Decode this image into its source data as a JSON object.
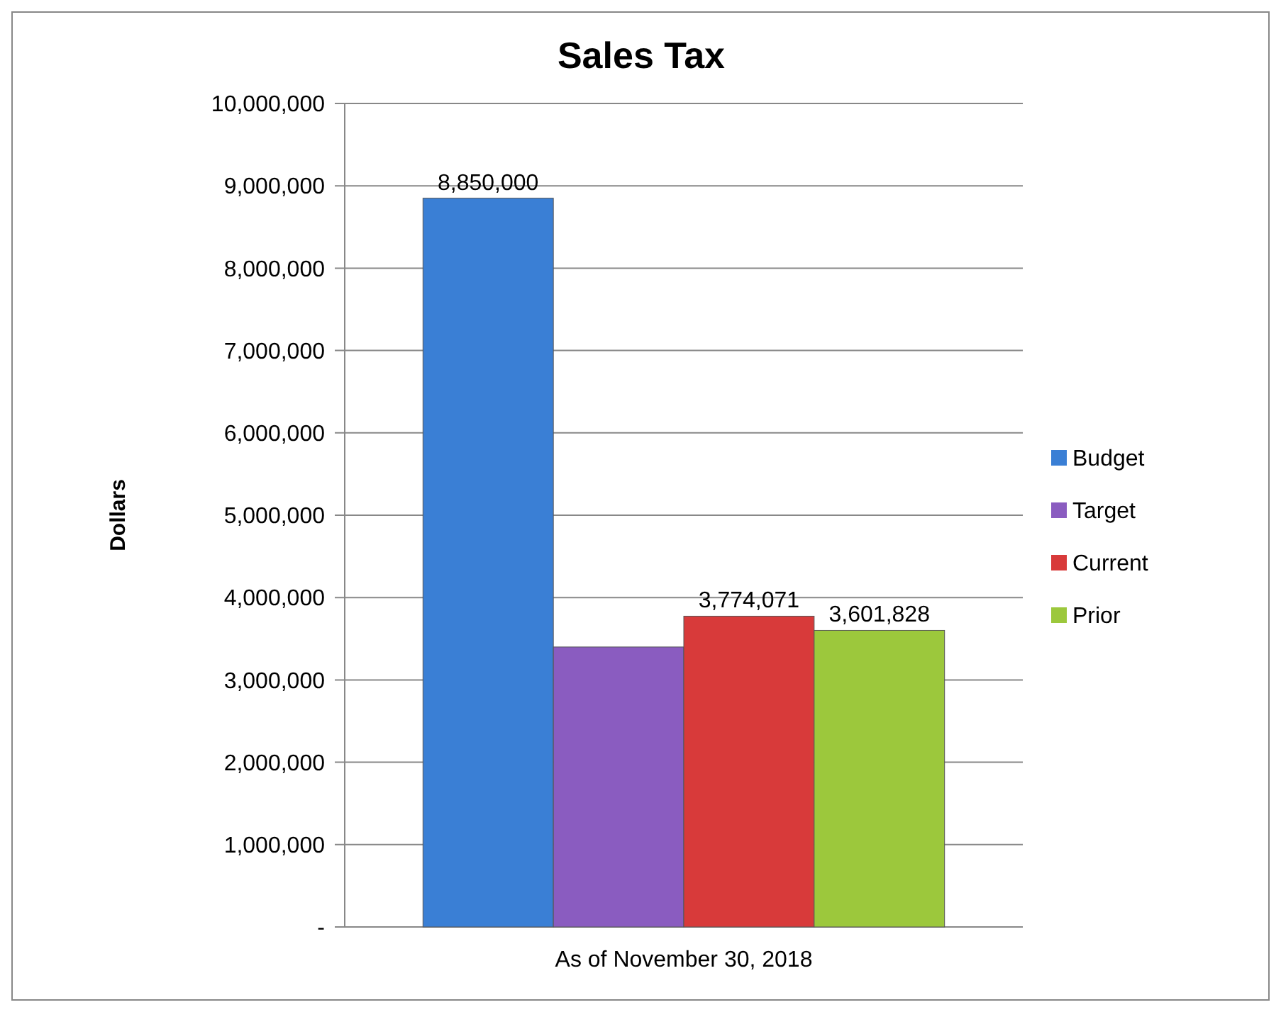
{
  "chart_data": {
    "type": "bar",
    "title": "Sales Tax",
    "ylabel": "Dollars",
    "categories": [
      "As of November 30, 2018"
    ],
    "series": [
      {
        "name": "Budget",
        "color": "#3a7fd5",
        "values": [
          8850000
        ],
        "value_labels": [
          "8,850,000"
        ]
      },
      {
        "name": "Target",
        "color": "#8a5cc0",
        "values": [
          3400000
        ],
        "value_labels": [
          null
        ]
      },
      {
        "name": "Current",
        "color": "#d83a3a",
        "values": [
          3774071
        ],
        "value_labels": [
          "3,774,071"
        ]
      },
      {
        "name": "Prior",
        "color": "#9cc83c",
        "values": [
          3601828
        ],
        "value_labels": [
          "3,601,828"
        ]
      }
    ],
    "ylim": [
      0,
      10000000
    ],
    "yticks": [
      {
        "value": 0,
        "label": "-"
      },
      {
        "value": 1000000,
        "label": "1,000,000"
      },
      {
        "value": 2000000,
        "label": "2,000,000"
      },
      {
        "value": 3000000,
        "label": "3,000,000"
      },
      {
        "value": 4000000,
        "label": "4,000,000"
      },
      {
        "value": 5000000,
        "label": "5,000,000"
      },
      {
        "value": 6000000,
        "label": "6,000,000"
      },
      {
        "value": 7000000,
        "label": "7,000,000"
      },
      {
        "value": 8000000,
        "label": "8,000,000"
      },
      {
        "value": 9000000,
        "label": "9,000,000"
      },
      {
        "value": 10000000,
        "label": "10,000,000"
      }
    ],
    "grid": "y",
    "legend": "right"
  }
}
